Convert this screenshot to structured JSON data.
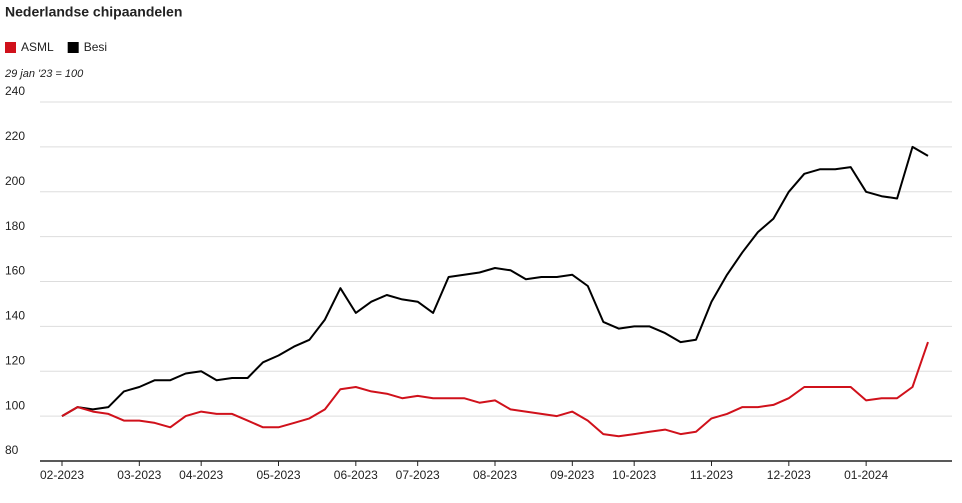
{
  "chart_data": {
    "type": "line",
    "title": "Nederlandse chipaandelen",
    "subtitle": "29 jan '23 = 100",
    "categories": [
      "02-2023",
      null,
      null,
      null,
      null,
      "03-2023",
      null,
      null,
      null,
      "04-2023",
      null,
      null,
      null,
      null,
      "05-2023",
      null,
      null,
      null,
      null,
      "06-2023",
      null,
      null,
      null,
      "07-2023",
      null,
      null,
      null,
      null,
      "08-2023",
      null,
      null,
      null,
      null,
      "09-2023",
      null,
      null,
      null,
      "10-2023",
      null,
      null,
      null,
      null,
      "11-2023",
      null,
      null,
      null,
      null,
      "12-2023",
      null,
      null,
      null,
      null,
      "01-2024",
      null,
      null,
      null,
      null
    ],
    "series": [
      {
        "name": "ASML",
        "color": "#d0111b",
        "values": [
          100,
          104,
          102,
          101,
          98,
          98,
          97,
          95,
          100,
          102,
          101,
          101,
          98,
          95,
          95,
          97,
          99,
          103,
          112,
          113,
          111,
          110,
          108,
          109,
          108,
          108,
          108,
          106,
          107,
          103,
          102,
          101,
          100,
          102,
          98,
          92,
          91,
          92,
          93,
          94,
          92,
          93,
          99,
          101,
          104,
          104,
          105,
          108,
          113,
          113,
          113,
          113,
          107,
          108,
          108,
          113,
          133
        ]
      },
      {
        "name": "Besi",
        "color": "#000000",
        "values": [
          100,
          104,
          103,
          104,
          111,
          113,
          116,
          116,
          119,
          120,
          116,
          117,
          117,
          124,
          127,
          131,
          134,
          143,
          157,
          146,
          151,
          154,
          152,
          151,
          146,
          162,
          163,
          164,
          166,
          165,
          161,
          162,
          162,
          163,
          158,
          142,
          139,
          140,
          140,
          137,
          133,
          134,
          151,
          163,
          173,
          182,
          188,
          200,
          208,
          210,
          210,
          211,
          200,
          198,
          197,
          220,
          216
        ]
      }
    ],
    "ylim": [
      80,
      240
    ],
    "yticks": [
      80,
      100,
      120,
      140,
      160,
      180,
      200,
      220,
      240
    ],
    "grid": true
  }
}
